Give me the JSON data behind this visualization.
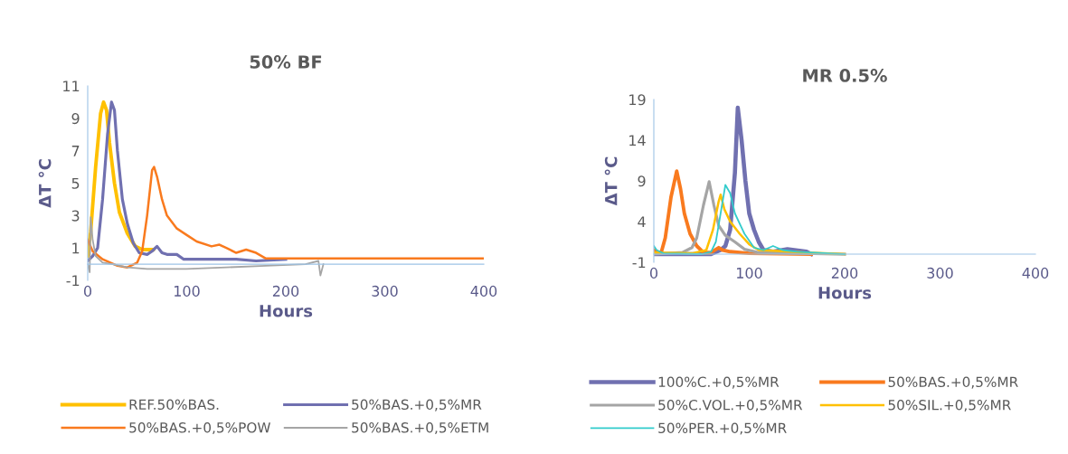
{
  "chart_data": [
    {
      "type": "line",
      "title": "50% BF",
      "xlabel": "Hours",
      "ylabel": "ΔT °C",
      "xlim": [
        0,
        400
      ],
      "ylim": [
        -1,
        11
      ],
      "xticks": [
        0,
        100,
        200,
        300,
        400
      ],
      "yticks": [
        -1,
        1,
        3,
        5,
        7,
        9,
        11
      ],
      "grid": false,
      "legend": "bottom",
      "marker": "none",
      "line_style": "solid",
      "series": [
        {
          "name": "REF.50%BAS.",
          "color": "#ffc000",
          "x": [
            0,
            3,
            8,
            13,
            16,
            19,
            22,
            27,
            32,
            40,
            48,
            55,
            66
          ],
          "values": [
            0.5,
            2,
            6,
            9.3,
            10,
            9.5,
            7.5,
            5,
            3.2,
            1.9,
            1.1,
            0.9,
            0.9
          ]
        },
        {
          "name": "50%BAS.+0,5%MR",
          "color": "#7070b0",
          "x": [
            0,
            5,
            10,
            15,
            20,
            24,
            27,
            30,
            35,
            40,
            46,
            52,
            60,
            65,
            70,
            75,
            80,
            90,
            97,
            120,
            150,
            170,
            200
          ],
          "values": [
            0.2,
            0.5,
            1,
            4,
            8,
            10,
            9.5,
            7,
            4,
            2.5,
            1.3,
            0.7,
            0.6,
            0.8,
            1.1,
            0.7,
            0.6,
            0.6,
            0.3,
            0.3,
            0.3,
            0.2,
            0.3
          ]
        },
        {
          "name": "50%BAS.+0,5%POW",
          "color": "#f97a1e",
          "x": [
            0,
            5,
            15,
            30,
            40,
            50,
            55,
            60,
            65,
            67,
            70,
            75,
            80,
            90,
            100,
            110,
            125,
            133,
            140,
            150,
            160,
            170,
            180,
            200,
            300,
            400
          ],
          "values": [
            1.5,
            0.8,
            0.3,
            -0.1,
            -0.2,
            0.1,
            0.8,
            3,
            5.8,
            6,
            5.4,
            4,
            3,
            2.2,
            1.8,
            1.4,
            1.1,
            1.2,
            1,
            0.7,
            0.9,
            0.7,
            0.35,
            0.35,
            0.35,
            0.35
          ]
        },
        {
          "name": "50%BAS.+0,5%ETM",
          "color": "#a5a5a5",
          "x": [
            0,
            2,
            3,
            5,
            8,
            15,
            25,
            40,
            60,
            100,
            140,
            180,
            220,
            233,
            235,
            238
          ],
          "values": [
            0,
            -0.5,
            2.9,
            1.5,
            0.5,
            0.1,
            0,
            -0.2,
            -0.3,
            -0.3,
            -0.2,
            -0.1,
            0,
            0.2,
            -0.7,
            0
          ]
        }
      ]
    },
    {
      "type": "line",
      "title": "MR 0.5%",
      "xlabel": "Hours",
      "ylabel": "ΔT °C",
      "xlim": [
        0,
        400
      ],
      "ylim": [
        -1,
        19
      ],
      "xticks": [
        0,
        100,
        200,
        300,
        400
      ],
      "yticks": [
        -1,
        4,
        9,
        14,
        19
      ],
      "grid": false,
      "legend": "bottom",
      "marker": "none",
      "line_style": "solid",
      "series": [
        {
          "name": "100%C.+0,5%MR",
          "color": "#7070b0",
          "x": [
            0,
            30,
            60,
            70,
            75,
            80,
            85,
            88,
            92,
            96,
            100,
            105,
            110,
            115,
            125,
            140,
            160,
            165
          ],
          "values": [
            0,
            0,
            0,
            0.5,
            1,
            3,
            10,
            18,
            14,
            9,
            5,
            3,
            1.5,
            0.5,
            0.3,
            0.6,
            0.3,
            0
          ]
        },
        {
          "name": "50%BAS.+0,5%MR",
          "color": "#f97a1e",
          "x": [
            0,
            5,
            8,
            12,
            18,
            24,
            28,
            32,
            38,
            45,
            52,
            60,
            68,
            72,
            80,
            100,
            165
          ],
          "values": [
            0.5,
            0.2,
            0.3,
            2,
            7,
            10.2,
            8,
            5,
            2.5,
            1,
            0.2,
            0.2,
            0.8,
            0.5,
            0.3,
            0.1,
            0
          ]
        },
        {
          "name": "50%C.VOL.+0,5%MR",
          "color": "#a5a5a5",
          "x": [
            0,
            30,
            40,
            45,
            52,
            58,
            63,
            68,
            75,
            85,
            95,
            110,
            200
          ],
          "values": [
            0,
            0.2,
            0.8,
            2,
            6,
            8.9,
            6,
            3.5,
            2.3,
            1.5,
            0.6,
            0.2,
            0
          ]
        },
        {
          "name": "50%SIL.+0,5%MR",
          "color": "#ffc000",
          "x": [
            0,
            40,
            55,
            62,
            68,
            70,
            74,
            80,
            90,
            100,
            110,
            130,
            160,
            200
          ],
          "values": [
            0.2,
            0.1,
            0.5,
            3,
            6.5,
            7.3,
            5.5,
            4,
            2.5,
            1.2,
            0.5,
            0.4,
            0.2,
            0
          ]
        },
        {
          "name": "50%PER.+0,5%MR",
          "color": "#33cccc",
          "x": [
            0,
            3,
            10,
            50,
            60,
            65,
            70,
            75,
            80,
            85,
            95,
            105,
            115,
            125,
            135,
            150,
            200
          ],
          "values": [
            1,
            0.5,
            0.1,
            0,
            0.3,
            1.5,
            5,
            8.5,
            7.5,
            5,
            2.5,
            0.8,
            0.5,
            1,
            0.5,
            0.3,
            0
          ]
        }
      ]
    }
  ]
}
